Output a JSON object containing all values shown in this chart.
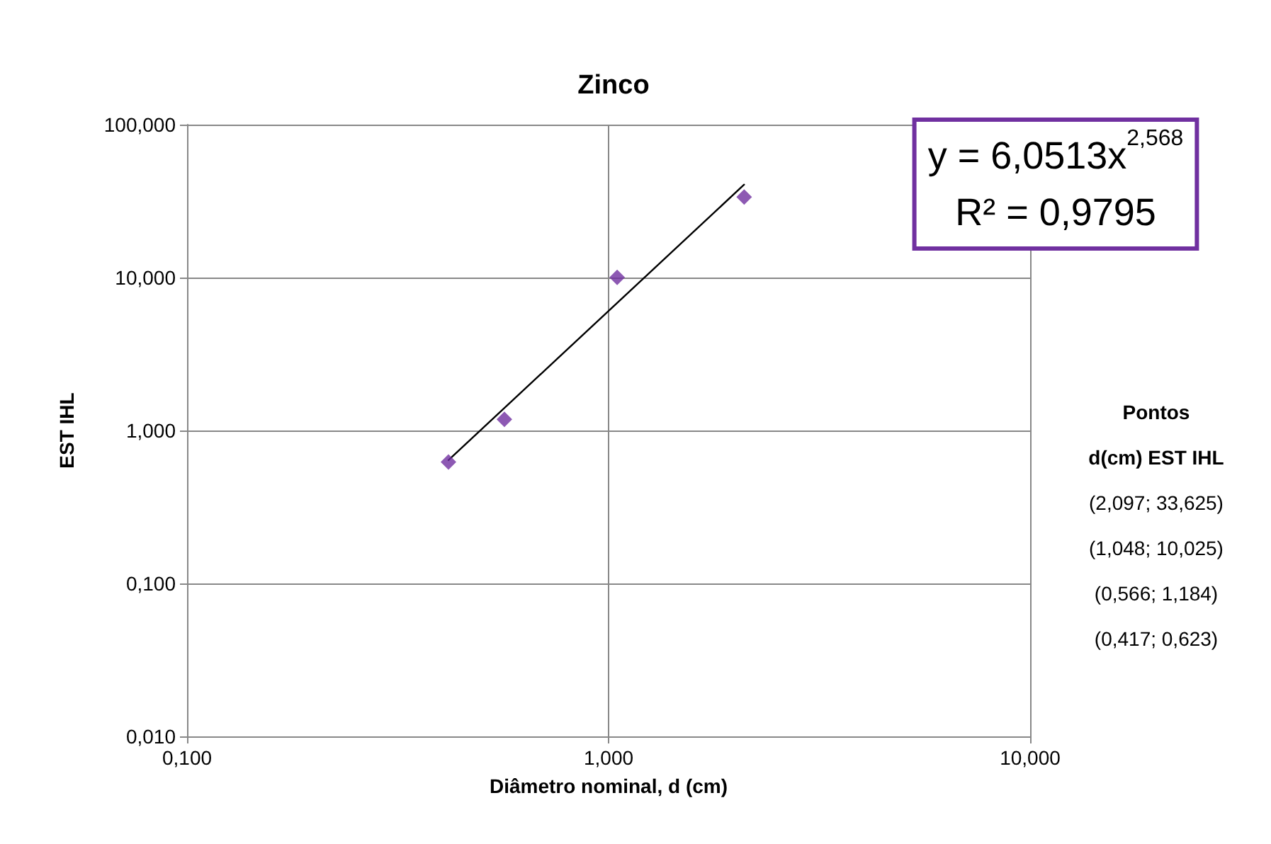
{
  "chart_data": {
    "type": "scatter",
    "title": "Zinco",
    "xlabel": "Diâmetro nominal, d (cm)",
    "ylabel": "EST IHL",
    "log": "xy",
    "grid": true,
    "marker": "diamond",
    "xlim": [
      0.1,
      10
    ],
    "xticks": [
      {
        "value": 0.1,
        "label": "0,100"
      },
      {
        "value": 1,
        "label": "1,000"
      },
      {
        "value": 10,
        "label": "10,000"
      }
    ],
    "ylim": [
      0.01,
      100
    ],
    "yticks": [
      {
        "value": 0.01,
        "label": "0,010"
      },
      {
        "value": 0.1,
        "label": "0,100"
      },
      {
        "value": 1,
        "label": "1,000"
      },
      {
        "value": 10,
        "label": "10,000"
      },
      {
        "value": 100,
        "label": "100,000"
      }
    ],
    "x": [
      0.417,
      0.566,
      1.048,
      2.097
    ],
    "series": [
      {
        "color": "#7030a0",
        "values": [
          0.623,
          1.184,
          10.025,
          33.625
        ]
      },
      {
        "type": "line",
        "color": "#000000",
        "line_style": "solid",
        "marker": "none",
        "x": [
          0.417,
          2.097
        ],
        "values": [
          0.64,
          40.53
        ]
      }
    ],
    "annotations": [
      "y = 6,0513x$^{2,568}$",
      "R² = 0,9795",
      "Pontos",
      "d(cm) EST IHL",
      "(2,097; 33,625)",
      "(1,048; 10,025)",
      "(0,566; 1,184)",
      "(0,417; 0,623)"
    ]
  }
}
